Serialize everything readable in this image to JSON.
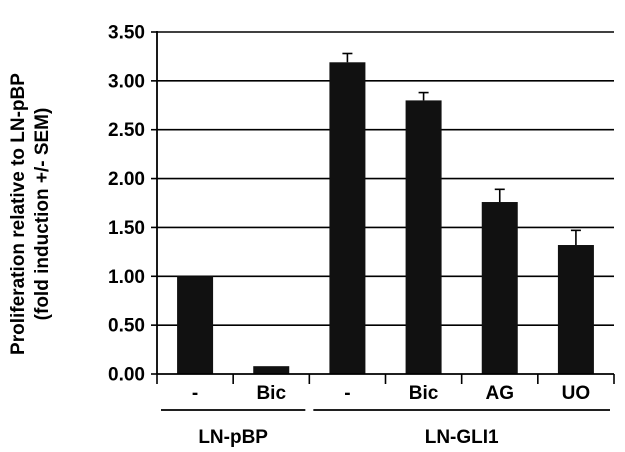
{
  "chart_data": {
    "type": "bar",
    "ylabel_lines": [
      "Proliferation relative to LN-pBP",
      "(fold induction +/- SEM)"
    ],
    "ylim": [
      0,
      3.5
    ],
    "yticks": [
      "0.00",
      "0.50",
      "1.00",
      "1.50",
      "2.00",
      "2.50",
      "3.00",
      "3.50"
    ],
    "grid": true,
    "categories": [
      "-",
      "Bic",
      "-",
      "Bic",
      "AG",
      "UO"
    ],
    "values": [
      1.0,
      0.08,
      3.19,
      2.8,
      1.76,
      1.32
    ],
    "errors": [
      0,
      0,
      0.09,
      0.08,
      0.13,
      0.15
    ],
    "groups": [
      {
        "label": "LN-pBP",
        "start": 0,
        "end": 1
      },
      {
        "label": "LN-GLI1",
        "start": 2,
        "end": 5
      }
    ],
    "bar_color": "#111111"
  }
}
